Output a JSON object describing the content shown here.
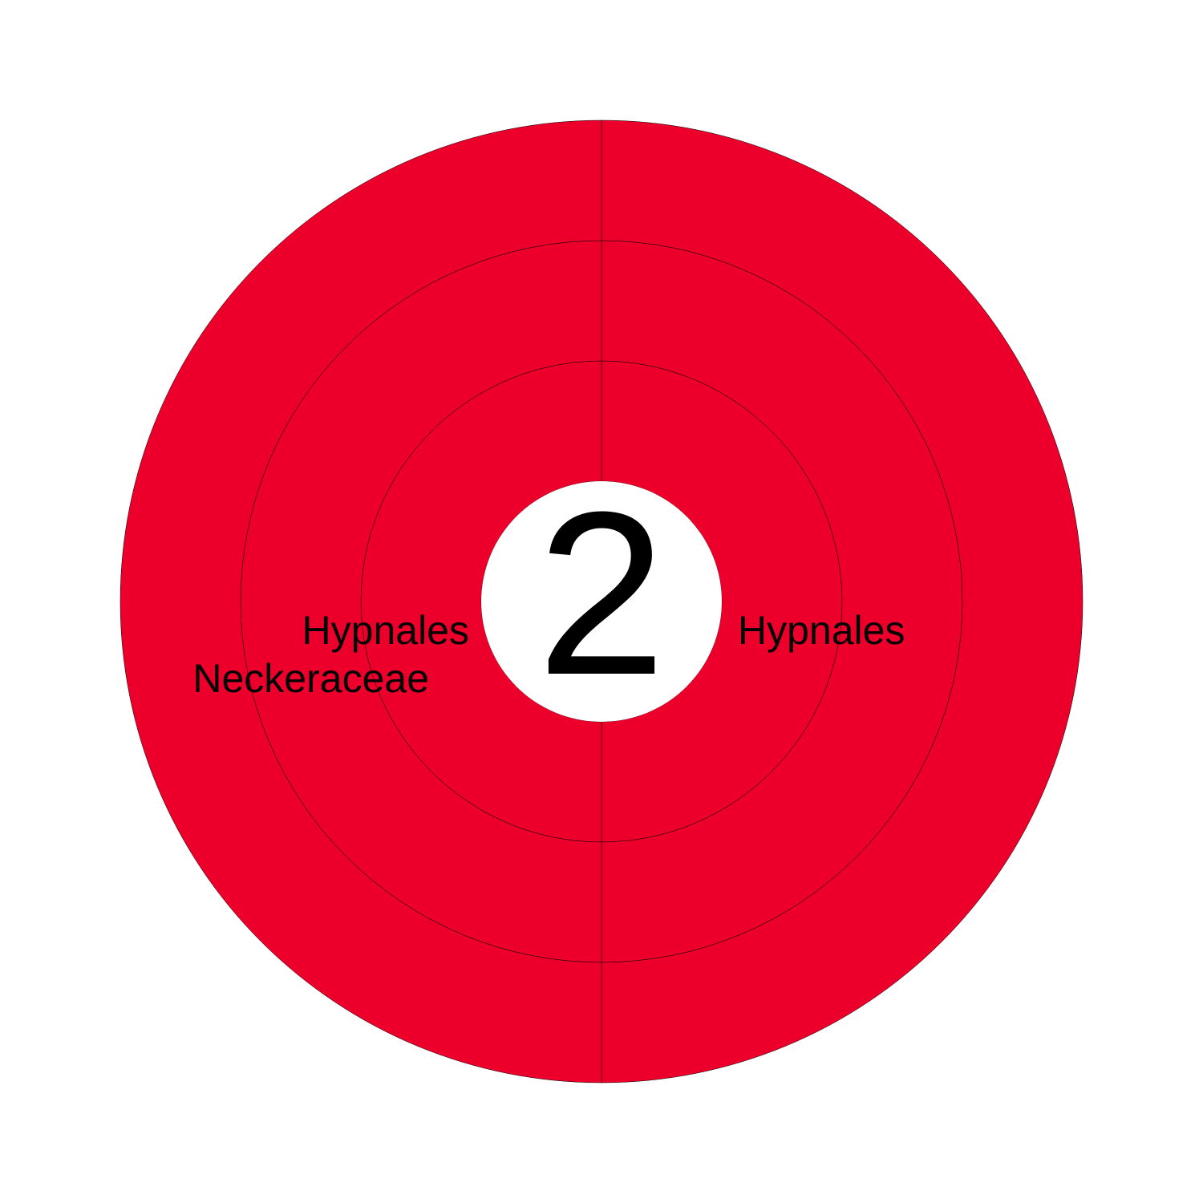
{
  "chart_data": {
    "type": "sunburst",
    "center_label": "2",
    "fill_color": "#ec002b",
    "line_color": "#000000",
    "background": "#ffffff",
    "rings": [
      {
        "level": 1,
        "segments": [
          {
            "label": "Hypnales",
            "value": 1
          },
          {
            "label": "Hypnales",
            "value": 1
          }
        ]
      },
      {
        "level": 2,
        "segments": [
          {
            "label": "",
            "value": 1
          },
          {
            "label": "Neckeraceae",
            "value": 1
          }
        ]
      },
      {
        "level": 3,
        "segments": [
          {
            "label": "",
            "value": 1
          },
          {
            "label": "",
            "value": 1
          }
        ]
      }
    ]
  }
}
